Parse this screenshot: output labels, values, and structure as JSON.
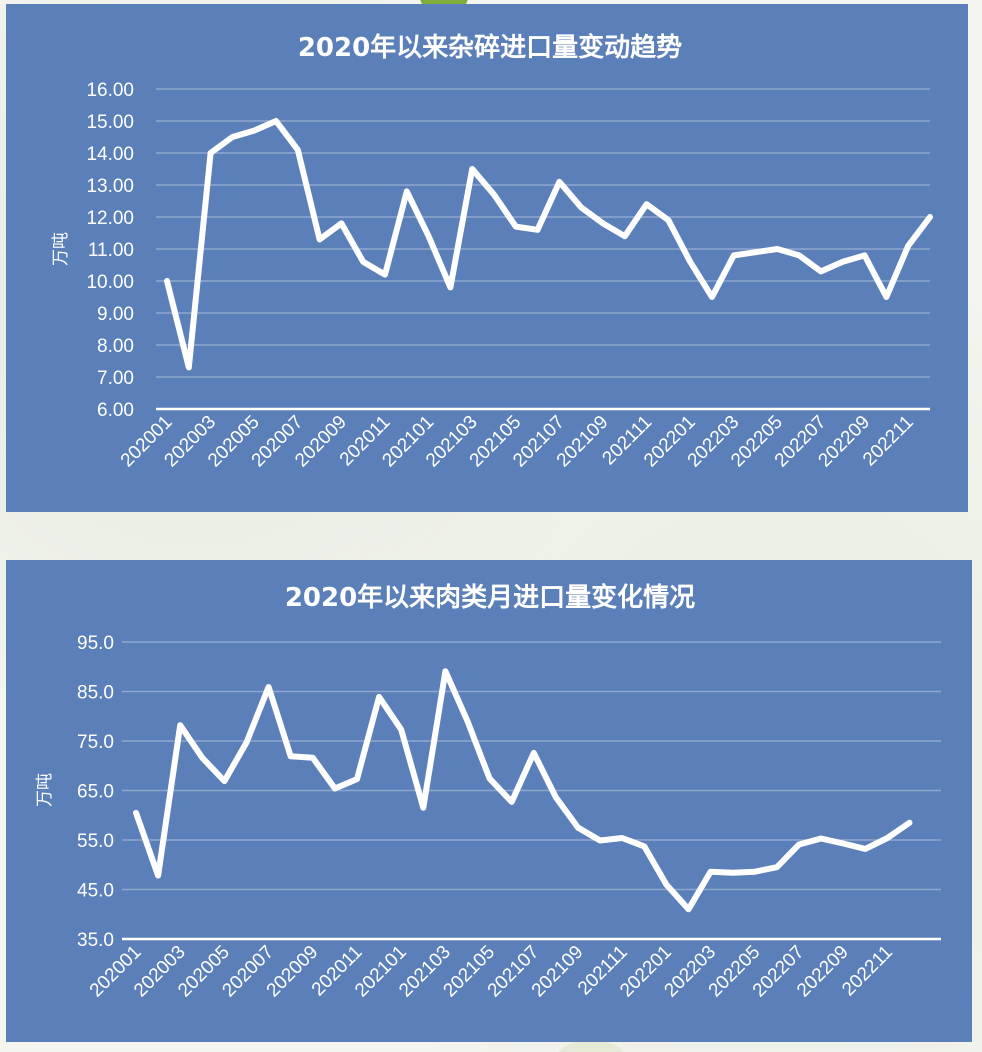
{
  "colors": {
    "panel_background": "#5b7fb8",
    "line": "#ffffff",
    "grid": "#8fa7d0",
    "page_background": "#f3f5ee"
  },
  "chart_data": [
    {
      "type": "line",
      "title": "2020年以来杂碎进口量变动趋势",
      "ylabel": "万吨",
      "xlabel": "",
      "ylim": [
        6,
        16
      ],
      "yticks": [
        "6.00",
        "7.00",
        "8.00",
        "9.00",
        "10.00",
        "11.00",
        "12.00",
        "13.00",
        "14.00",
        "15.00",
        "16.00"
      ],
      "ytick_values": [
        6,
        7,
        8,
        9,
        10,
        11,
        12,
        13,
        14,
        15,
        16
      ],
      "x": [
        "202001",
        "202002",
        "202003",
        "202004",
        "202005",
        "202006",
        "202007",
        "202008",
        "202009",
        "202010",
        "202011",
        "202012",
        "202101",
        "202102",
        "202103",
        "202104",
        "202105",
        "202106",
        "202107",
        "202108",
        "202109",
        "202110",
        "202111",
        "202112",
        "202201",
        "202202",
        "202203",
        "202204",
        "202205",
        "202206",
        "202207",
        "202208",
        "202209",
        "202210",
        "202211",
        "202212"
      ],
      "xtick_labels": [
        "202001",
        "202003",
        "202005",
        "202007",
        "202009",
        "202011",
        "202101",
        "202103",
        "202105",
        "202107",
        "202109",
        "202111",
        "202201",
        "202203",
        "202205",
        "202207",
        "202209",
        "202211"
      ],
      "values": [
        10.0,
        7.3,
        14.0,
        14.5,
        14.7,
        15.0,
        14.1,
        11.3,
        11.8,
        10.6,
        10.2,
        12.8,
        11.4,
        9.8,
        13.5,
        12.7,
        11.7,
        11.6,
        13.1,
        12.3,
        11.8,
        11.4,
        12.4,
        11.9,
        10.6,
        9.5,
        10.8,
        10.9,
        11.0,
        10.8,
        10.3,
        10.6,
        10.8,
        9.5,
        11.1,
        12.0
      ],
      "grid": true,
      "legend": false
    },
    {
      "type": "line",
      "title": "2020年以来肉类月进口量变化情况",
      "ylabel": "万吨",
      "xlabel": "",
      "ylim": [
        35,
        95
      ],
      "yticks": [
        "35.0",
        "45.0",
        "55.0",
        "65.0",
        "75.0",
        "85.0",
        "95.0"
      ],
      "ytick_values": [
        35,
        45,
        55,
        65,
        75,
        85,
        95
      ],
      "x": [
        "202001",
        "202002",
        "202003",
        "202004",
        "202005",
        "202006",
        "202007",
        "202008",
        "202009",
        "202010",
        "202011",
        "202012",
        "202101",
        "202102",
        "202103",
        "202104",
        "202105",
        "202106",
        "202107",
        "202108",
        "202109",
        "202110",
        "202111",
        "202112",
        "202201",
        "202202",
        "202203",
        "202204",
        "202205",
        "202206",
        "202207",
        "202208",
        "202209",
        "202210",
        "202211",
        "202212"
      ],
      "xtick_labels": [
        "202001",
        "202003",
        "202005",
        "202007",
        "202009",
        "202011",
        "202101",
        "202103",
        "202105",
        "202107",
        "202109",
        "202111",
        "202201",
        "202203",
        "202205",
        "202207",
        "202209",
        "202211"
      ],
      "values": [
        60.5,
        47.8,
        78.2,
        71.6,
        66.9,
        74.7,
        85.9,
        71.9,
        71.6,
        65.4,
        67.3,
        83.9,
        77.3,
        61.5,
        89.1,
        79.0,
        67.4,
        62.7,
        72.6,
        63.6,
        57.5,
        54.9,
        55.4,
        53.7,
        46.0,
        41.0,
        48.6,
        48.4,
        48.6,
        49.5,
        54.1,
        55.3,
        54.3,
        53.2,
        55.4,
        58.5
      ],
      "grid": true,
      "legend": false
    }
  ]
}
